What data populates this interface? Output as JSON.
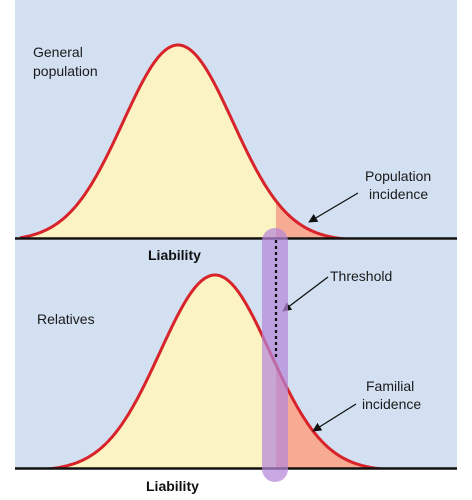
{
  "top_panel": {
    "label_line1": "General",
    "label_line2": "population",
    "annotation_line1": "Population",
    "annotation_line2": "incidence",
    "axis_label": "Liability"
  },
  "bottom_panel": {
    "label": "Relatives",
    "threshold_label": "Threshold",
    "annotation_line1": "Familial",
    "annotation_line2": "incidence",
    "axis_label": "Liability"
  },
  "colors": {
    "panel_background": "#d2e0f2",
    "curve_stroke": "#d8232a",
    "below_threshold_fill": "#fbf3c1",
    "above_threshold_fill": "#f7ab92",
    "threshold_band": "#b487d8",
    "threshold_line": "#111111"
  }
}
